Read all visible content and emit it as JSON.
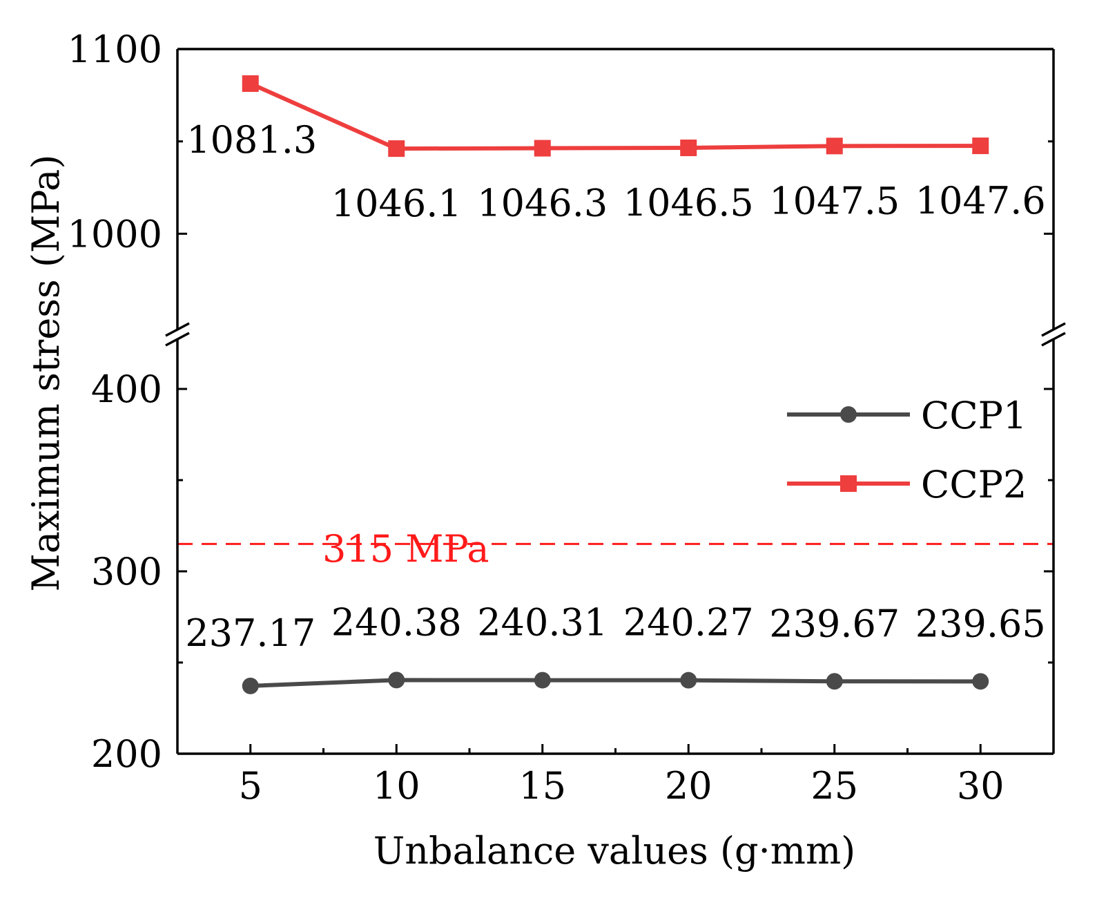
{
  "chart_data": {
    "type": "line",
    "title": "",
    "xlabel": "Unbalance values (g·mm)",
    "ylabel": "Maximum stress (MPa)",
    "x": [
      5,
      10,
      15,
      20,
      25,
      30
    ],
    "x_ticks": [
      5,
      10,
      15,
      20,
      25,
      30
    ],
    "x_tick_labels": [
      "5",
      "10",
      "15",
      "20",
      "25",
      "30"
    ],
    "xlim": [
      2.5,
      32.5
    ],
    "ylim": [
      200,
      1100
    ],
    "y_axis_break": true,
    "y_segments": [
      {
        "range": [
          200,
          425
        ],
        "ticks": [
          200,
          300,
          400
        ],
        "tick_labels": [
          "200",
          "300",
          "400"
        ]
      },
      {
        "range": [
          950,
          1100
        ],
        "ticks": [
          1000,
          1100
        ],
        "tick_labels": [
          "1000",
          "1100"
        ]
      }
    ],
    "grid": false,
    "legend_position": "right",
    "series": [
      {
        "name": "CCP1",
        "marker": "circle",
        "color": "#4a4a4a",
        "values": [
          237.17,
          240.38,
          240.31,
          240.27,
          239.67,
          239.65
        ],
        "labels": [
          "237.17",
          "240.38",
          "240.31",
          "240.27",
          "239.67",
          "239.65"
        ]
      },
      {
        "name": "CCP2",
        "marker": "square",
        "color": "#ee3e3e",
        "values": [
          1081.3,
          1046.1,
          1046.3,
          1046.5,
          1047.5,
          1047.6
        ],
        "labels": [
          "1081.3",
          "1046.1",
          "1046.3",
          "1046.5",
          "1047.5",
          "1047.6"
        ]
      }
    ],
    "reference_line": {
      "value": 315,
      "label": "315 MPa",
      "color": "#ff1a1a",
      "style": "dashed"
    }
  }
}
